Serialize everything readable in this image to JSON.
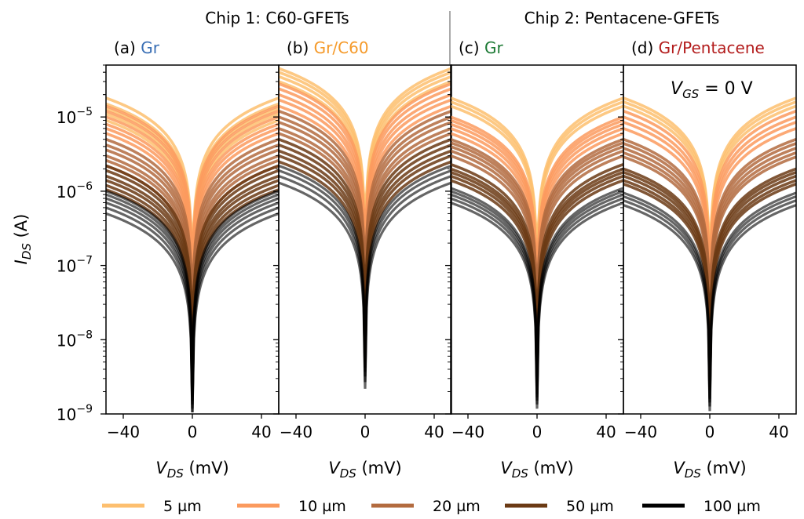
{
  "chip_titles": [
    {
      "text": "Chip 1: C60-GFETs"
    },
    {
      "text": "Chip 2: Pentacene-GFETs"
    }
  ],
  "colors": {
    "5": "#fdbf6f",
    "10": "#fb9a5e",
    "20": "#b36b3f",
    "50": "#6b3a14",
    "100": "#000000",
    "panel_label_gr_c60": "#3a6fb5",
    "panel_label_gr_c60_film": "#f59a2a",
    "panel_label_gr_pent": "#1d7a35",
    "panel_label_gr_pent_film": "#b31c1c"
  },
  "chart_data": [
    {
      "type": "line",
      "panel": "(a)",
      "label_prefix": "(a)",
      "label_name": "Gr",
      "label_color": "#3a6fb5",
      "xlabel_main": "V",
      "xlabel_sub": "DS",
      "xlabel_unit": "(mV)",
      "ylabel_main": "I",
      "ylabel_sub": "DS",
      "ylabel_unit": "(A)",
      "xlim": [
        -50,
        50
      ],
      "ylim": [
        1e-09,
        5e-05
      ],
      "yscale": "log",
      "xticks": [
        -40,
        0,
        40
      ],
      "yticks": [
        1e-09,
        1e-08,
        1e-07,
        1e-06,
        1e-05
      ],
      "ytick_labels": [
        "10",
        "10",
        "10",
        "10",
        "10"
      ],
      "ytick_exponents": [
        "−9",
        "−8",
        "−7",
        "−6",
        "−5"
      ],
      "series": [
        {
          "name": "5 µm",
          "color": "#fdbf6f",
          "endpoints": [
            1.8e-05,
            1.5e-05,
            1.3e-05,
            1.1e-05,
            9e-06
          ]
        },
        {
          "name": "10 µm",
          "color": "#fb9a5e",
          "endpoints": [
            1.4e-05,
            1.2e-05,
            1e-05,
            8e-06,
            7e-06,
            6e-06
          ]
        },
        {
          "name": "20 µm",
          "color": "#b36b3f",
          "endpoints": [
            5e-06,
            4.2e-06,
            3.6e-06,
            3e-06,
            2.6e-06,
            2.2e-06
          ]
        },
        {
          "name": "50 µm",
          "color": "#6b3a14",
          "endpoints": [
            2.2e-06,
            1.9e-06,
            1.6e-06,
            1.4e-06,
            1.2e-06,
            1.05e-06
          ]
        },
        {
          "name": "100 µm",
          "color": "#000000",
          "endpoints": [
            1e-06,
            9e-07,
            8e-07,
            7e-07,
            6e-07,
            5e-07
          ]
        }
      ]
    },
    {
      "type": "line",
      "panel": "(b)",
      "label_prefix": "(b)",
      "label_name": "Gr/C60",
      "label_color": "#f59a2a",
      "xlim": [
        -50,
        50
      ],
      "ylim": [
        1e-09,
        5e-05
      ],
      "yscale": "log",
      "xticks": [
        -40,
        0,
        40
      ],
      "series": [
        {
          "name": "5 µm",
          "color": "#fdbf6f",
          "endpoints": [
            4.5e-05,
            4e-05,
            3.5e-05,
            3e-05
          ]
        },
        {
          "name": "10 µm",
          "color": "#fb9a5e",
          "endpoints": [
            2.8e-05,
            2.4e-05,
            2e-05,
            1.7e-05,
            1.4e-05
          ]
        },
        {
          "name": "20 µm",
          "color": "#b36b3f",
          "endpoints": [
            1.2e-05,
            1e-05,
            8.5e-06,
            7e-06,
            6e-06
          ]
        },
        {
          "name": "50 µm",
          "color": "#6b3a14",
          "endpoints": [
            5e-06,
            4.2e-06,
            3.5e-06,
            3e-06,
            2.5e-06
          ]
        },
        {
          "name": "100 µm",
          "color": "#000000",
          "endpoints": [
            2.2e-06,
            1.9e-06,
            1.6e-06,
            1.3e-06
          ]
        }
      ]
    },
    {
      "type": "line",
      "panel": "(c)",
      "label_prefix": "(c)",
      "label_name": "Gr",
      "label_color": "#1d7a35",
      "xlim": [
        -50,
        50
      ],
      "ylim": [
        1e-09,
        5e-05
      ],
      "yscale": "log",
      "xticks": [
        -40,
        0,
        40
      ],
      "series": [
        {
          "name": "5 µm",
          "color": "#fdbf6f",
          "endpoints": [
            1.8e-05,
            1.6e-05,
            1.4e-05
          ]
        },
        {
          "name": "10 µm",
          "color": "#fb9a5e",
          "endpoints": [
            1e-05,
            9e-06,
            8e-06,
            7e-06,
            6e-06
          ]
        },
        {
          "name": "20 µm",
          "color": "#b36b3f",
          "endpoints": [
            5e-06,
            4.5e-06,
            4e-06,
            3.5e-06,
            3e-06
          ]
        },
        {
          "name": "50 µm",
          "color": "#6b3a14",
          "endpoints": [
            2.3e-06,
            2e-06,
            1.8e-06,
            1.6e-06,
            1.4e-06
          ]
        },
        {
          "name": "100 µm",
          "color": "#000000",
          "endpoints": [
            1.1e-06,
            1e-06,
            9e-07,
            8e-07,
            7e-07
          ]
        }
      ]
    },
    {
      "type": "line",
      "panel": "(d)",
      "label_prefix": "(d)",
      "label_name": "Gr/Pentacene",
      "label_color": "#b31c1c",
      "annotation_main": "V",
      "annotation_sub": "GS",
      "annotation_rest": " = 0 V",
      "xlim": [
        -50,
        50
      ],
      "ylim": [
        1e-09,
        5e-05
      ],
      "yscale": "log",
      "xticks": [
        -40,
        0,
        40
      ],
      "series": [
        {
          "name": "5 µm",
          "color": "#fdbf6f",
          "endpoints": [
            1.8e-05,
            1.6e-05,
            1.4e-05
          ]
        },
        {
          "name": "10 µm",
          "color": "#fb9a5e",
          "endpoints": [
            1.2e-05,
            1e-05,
            8.5e-06,
            7e-06
          ]
        },
        {
          "name": "20 µm",
          "color": "#b36b3f",
          "endpoints": [
            5e-06,
            4.4e-06,
            3.8e-06,
            3.3e-06,
            2.9e-06
          ]
        },
        {
          "name": "50 µm",
          "color": "#6b3a14",
          "endpoints": [
            2e-06,
            1.8e-06,
            1.6e-06,
            1.4e-06,
            1.25e-06
          ]
        },
        {
          "name": "100 µm",
          "color": "#000000",
          "endpoints": [
            9.5e-07,
            8.5e-07,
            7.5e-07,
            6.5e-07
          ]
        }
      ]
    }
  ],
  "legend": {
    "placement": "bottom",
    "items": [
      {
        "label": "5 µm",
        "color": "#fdbf6f"
      },
      {
        "label": "10 µm",
        "color": "#fb9a5e"
      },
      {
        "label": "20 µm",
        "color": "#b36b3f"
      },
      {
        "label": "50 µm",
        "color": "#6b3a14"
      },
      {
        "label": "100 µm",
        "color": "#000000"
      }
    ]
  }
}
